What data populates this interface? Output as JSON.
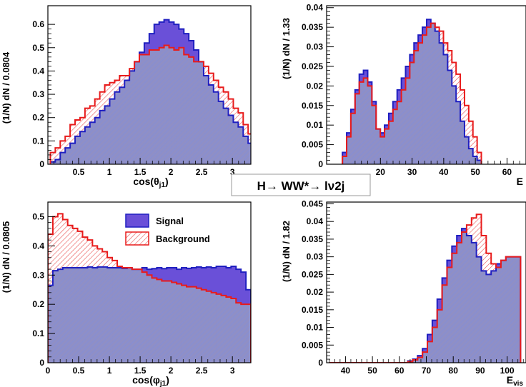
{
  "figure": {
    "title": "H→ WW*→ lν2j"
  },
  "legend": {
    "signal": "Signal",
    "background": "Background"
  },
  "colors": {
    "signal_fill": "#6a50d8",
    "signal_line": "#1f1fc0",
    "background_line": "#e81b1b",
    "hatch_bg": "#e85050",
    "hatch_sig": "#7d8de0",
    "overlap_fill": "#8f8fc6"
  },
  "chart_data": [
    {
      "type": "histogram",
      "ylabel": "(1/N) dN / 0.0804",
      "xlabel": "cos(θj1)",
      "xlim": [
        0,
        3.3
      ],
      "ylim": [
        0,
        0.68
      ],
      "xticks": [
        0.5,
        1,
        1.5,
        2,
        2.5,
        3
      ],
      "yticks": [
        0,
        0.1,
        0.2,
        0.3,
        0.4,
        0.5,
        0.6
      ],
      "ytick_labels": [
        "0",
        "0.1",
        "0.2",
        "0.3",
        "0.4",
        "0.5",
        "0.6"
      ],
      "bin_edges_start": 0.04,
      "bin_width": 0.0804,
      "series": [
        {
          "name": "Signal",
          "values": [
            0.01,
            0.02,
            0.05,
            0.07,
            0.09,
            0.12,
            0.14,
            0.16,
            0.18,
            0.2,
            0.23,
            0.25,
            0.28,
            0.31,
            0.33,
            0.36,
            0.4,
            0.44,
            0.48,
            0.52,
            0.56,
            0.6,
            0.61,
            0.62,
            0.61,
            0.6,
            0.58,
            0.56,
            0.53,
            0.49,
            0.44,
            0.38,
            0.34,
            0.31,
            0.27,
            0.24,
            0.21,
            0.18,
            0.16,
            0.12,
            0.09,
            0.07,
            0.03,
            0.01
          ]
        },
        {
          "name": "Background",
          "values": [
            0.05,
            0.07,
            0.1,
            0.12,
            0.17,
            0.19,
            0.2,
            0.24,
            0.25,
            0.28,
            0.31,
            0.34,
            0.35,
            0.36,
            0.38,
            0.38,
            0.41,
            0.44,
            0.47,
            0.47,
            0.49,
            0.49,
            0.5,
            0.51,
            0.5,
            0.49,
            0.5,
            0.47,
            0.46,
            0.44,
            0.44,
            0.42,
            0.39,
            0.36,
            0.33,
            0.31,
            0.28,
            0.24,
            0.22,
            0.17,
            0.13,
            0.09,
            0.05,
            0.02
          ]
        }
      ]
    },
    {
      "type": "histogram",
      "ylabel": "(1/N) dN / 1.33",
      "xlabel": "E",
      "xlim": [
        3,
        66
      ],
      "ylim": [
        0,
        0.0405
      ],
      "xticks": [
        20,
        30,
        40,
        50,
        60
      ],
      "yticks": [
        0,
        0.005,
        0.01,
        0.015,
        0.02,
        0.025,
        0.03,
        0.035,
        0.04
      ],
      "ytick_labels": [
        "0",
        "0.005",
        "0.01",
        "0.015",
        "0.02",
        "0.025",
        "0.03",
        "0.035",
        "0.04"
      ],
      "bin_edges_start": 8.0,
      "bin_width": 1.33,
      "series": [
        {
          "name": "Signal",
          "values": [
            0.003,
            0.008,
            0.014,
            0.019,
            0.023,
            0.024,
            0.021,
            0.016,
            0.009,
            0.008,
            0.01,
            0.013,
            0.016,
            0.019,
            0.022,
            0.025,
            0.028,
            0.031,
            0.033,
            0.035,
            0.037,
            0.036,
            0.034,
            0.031,
            0.028,
            0.024,
            0.02,
            0.016,
            0.011,
            0.007,
            0.004,
            0.002,
            0.001
          ]
        },
        {
          "name": "Background",
          "values": [
            0.002,
            0.007,
            0.013,
            0.018,
            0.021,
            0.022,
            0.02,
            0.015,
            0.009,
            0.007,
            0.009,
            0.011,
            0.014,
            0.016,
            0.019,
            0.022,
            0.026,
            0.029,
            0.031,
            0.033,
            0.035,
            0.036,
            0.035,
            0.034,
            0.031,
            0.029,
            0.026,
            0.023,
            0.019,
            0.015,
            0.011,
            0.007,
            0.003
          ]
        }
      ]
    },
    {
      "type": "histogram",
      "ylabel": "(1/N) dN / 0.0805",
      "xlabel": "cos(φj1)",
      "xlim": [
        0,
        3.3
      ],
      "ylim": [
        0,
        0.55
      ],
      "xticks": [
        0,
        0.5,
        1,
        1.5,
        2,
        2.5,
        3
      ],
      "yticks": [
        0,
        0.1,
        0.2,
        0.3,
        0.4,
        0.5
      ],
      "ytick_labels": [
        "0",
        "0.1",
        "0.2",
        "0.3",
        "0.4",
        "0.5"
      ],
      "bin_edges_start": 0.0,
      "bin_width": 0.0805,
      "series": [
        {
          "name": "Signal",
          "values": [
            0.265,
            0.315,
            0.32,
            0.325,
            0.325,
            0.325,
            0.325,
            0.325,
            0.328,
            0.325,
            0.328,
            0.328,
            0.325,
            0.325,
            0.325,
            0.323,
            0.325,
            0.32,
            0.32,
            0.325,
            0.32,
            0.322,
            0.325,
            0.322,
            0.325,
            0.325,
            0.32,
            0.325,
            0.323,
            0.325,
            0.328,
            0.325,
            0.328,
            0.325,
            0.33,
            0.33,
            0.325,
            0.33,
            0.32,
            0.31,
            0.25
          ]
        },
        {
          "name": "Background",
          "values": [
            0.44,
            0.5,
            0.51,
            0.49,
            0.47,
            0.46,
            0.45,
            0.43,
            0.42,
            0.4,
            0.39,
            0.38,
            0.36,
            0.35,
            0.33,
            0.325,
            0.325,
            0.32,
            0.32,
            0.31,
            0.3,
            0.29,
            0.285,
            0.28,
            0.28,
            0.275,
            0.27,
            0.265,
            0.26,
            0.26,
            0.255,
            0.25,
            0.245,
            0.24,
            0.235,
            0.23,
            0.225,
            0.22,
            0.205,
            0.2,
            0.2
          ]
        }
      ]
    },
    {
      "type": "histogram",
      "ylabel": "(1/N) dN / 1.82",
      "xlabel": "Evis",
      "xlim": [
        33,
        107
      ],
      "ylim": [
        0,
        0.0455
      ],
      "xticks": [
        40,
        50,
        60,
        70,
        80,
        90,
        100
      ],
      "yticks": [
        0,
        0.005,
        0.01,
        0.015,
        0.02,
        0.025,
        0.03,
        0.035,
        0.04,
        0.045
      ],
      "ytick_labels": [
        "0",
        "0.005",
        "0.01",
        "0.015",
        "0.02",
        "0.025",
        "0.03",
        "0.035",
        "0.04",
        "0.045"
      ],
      "bin_edges_start": 34.0,
      "bin_width": 1.82,
      "series": [
        {
          "name": "Signal",
          "values": [
            0,
            0,
            0,
            0,
            0,
            0,
            0,
            0,
            0,
            0,
            0,
            0,
            0,
            0,
            0,
            0,
            0.0005,
            0.001,
            0.002,
            0.004,
            0.008,
            0.012,
            0.018,
            0.024,
            0.029,
            0.033,
            0.036,
            0.038,
            0.036,
            0.034,
            0.03,
            0.026,
            0.025,
            0.026,
            0.028,
            0.029,
            0.03,
            0.03,
            0.03
          ]
        },
        {
          "name": "Background",
          "values": [
            0,
            0,
            0,
            0,
            0,
            0,
            0,
            0,
            0,
            0,
            0,
            0,
            0,
            0,
            0,
            0,
            0.0003,
            0.0008,
            0.0015,
            0.003,
            0.006,
            0.01,
            0.015,
            0.022,
            0.027,
            0.031,
            0.034,
            0.037,
            0.039,
            0.041,
            0.042,
            0.036,
            0.031,
            0.028,
            0.027,
            0.029,
            0.03,
            0.03,
            0.03
          ]
        }
      ]
    }
  ]
}
